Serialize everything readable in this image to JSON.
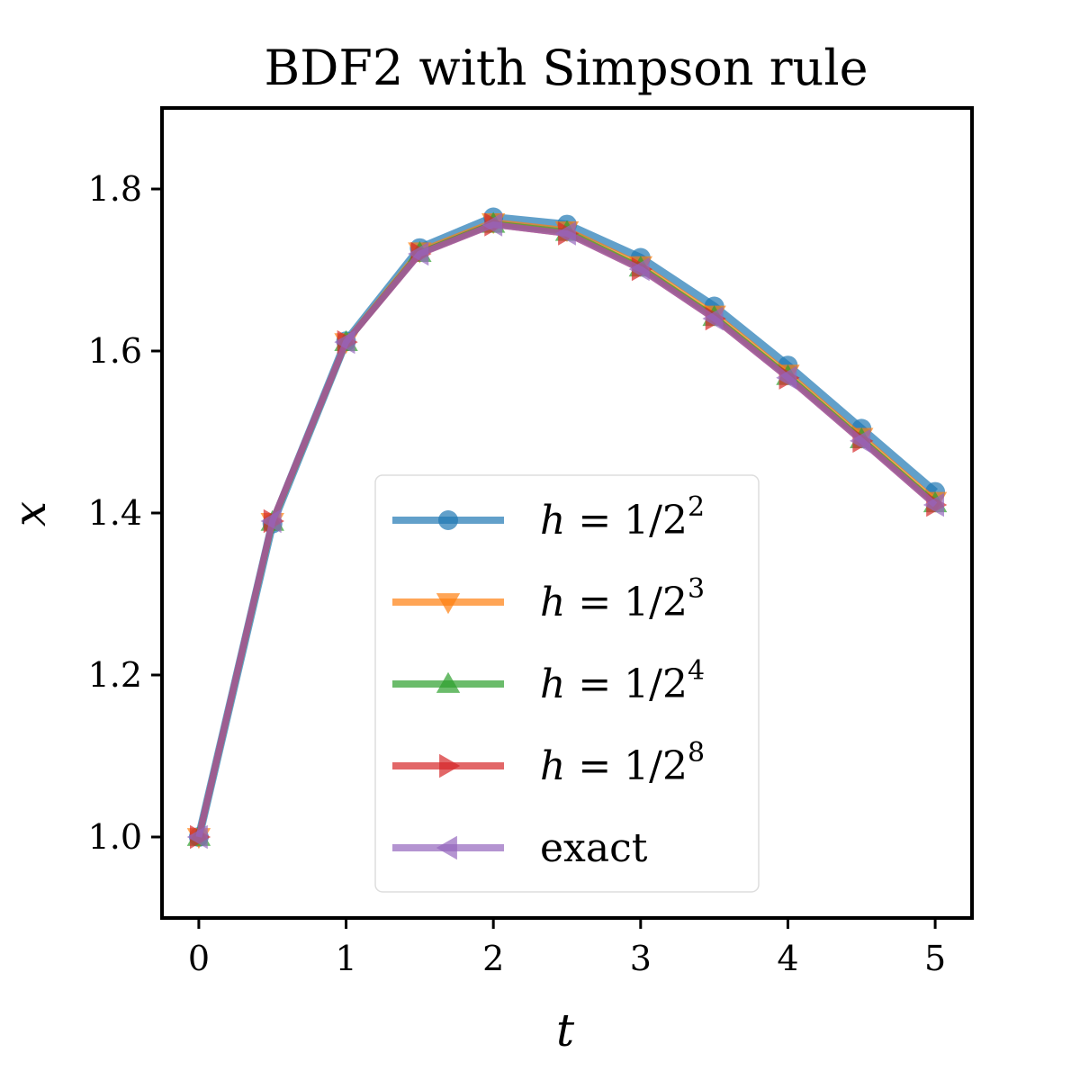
{
  "chart_data": {
    "type": "line",
    "title": "BDF2 with Simpson rule",
    "xlabel": "t",
    "ylabel": "x",
    "xlim": [
      -0.25,
      5.25
    ],
    "ylim": [
      0.9,
      1.9
    ],
    "xticks": [
      0,
      1,
      2,
      3,
      4,
      5
    ],
    "xtick_labels": [
      "0",
      "1",
      "2",
      "3",
      "4",
      "5"
    ],
    "yticks": [
      1.0,
      1.2,
      1.4,
      1.6,
      1.8
    ],
    "ytick_labels": [
      "1.0",
      "1.2",
      "1.4",
      "1.6",
      "1.8"
    ],
    "grid": false,
    "legend_position": "lower-center",
    "x": [
      0,
      0.5,
      1,
      1.5,
      2,
      2.5,
      3,
      3.5,
      4,
      4.5,
      5
    ],
    "series": [
      {
        "name": "h = 1/2^2",
        "legend": {
          "prefix": "h",
          "rest": " = 1/2",
          "exp": "2"
        },
        "color": "#1f77b4",
        "marker": "circle",
        "values": [
          1.0,
          1.387,
          1.612,
          1.727,
          1.765,
          1.756,
          1.715,
          1.655,
          1.582,
          1.504,
          1.426
        ]
      },
      {
        "name": "h = 1/2^3",
        "legend": {
          "prefix": "h",
          "rest": " = 1/2",
          "exp": "3"
        },
        "color": "#ff7f0e",
        "marker": "triangle-down",
        "values": [
          1.0,
          1.389,
          1.611,
          1.723,
          1.759,
          1.749,
          1.706,
          1.645,
          1.572,
          1.494,
          1.415
        ]
      },
      {
        "name": "h = 1/2^4",
        "legend": {
          "prefix": "h",
          "rest": " = 1/2",
          "exp": "4"
        },
        "color": "#2ca02c",
        "marker": "triangle-up",
        "values": [
          1.0,
          1.389,
          1.611,
          1.721,
          1.757,
          1.747,
          1.703,
          1.642,
          1.569,
          1.491,
          1.412
        ]
      },
      {
        "name": "h = 1/2^8",
        "legend": {
          "prefix": "h",
          "rest": " = 1/2",
          "exp": "8"
        },
        "color": "#d62728",
        "marker": "triangle-right",
        "values": [
          1.0,
          1.39,
          1.611,
          1.72,
          1.756,
          1.745,
          1.701,
          1.64,
          1.567,
          1.489,
          1.41
        ]
      },
      {
        "name": "exact",
        "legend": {
          "prefix": "",
          "rest": "exact",
          "exp": ""
        },
        "color": "#9467bd",
        "marker": "triangle-left",
        "values": [
          1.0,
          1.39,
          1.611,
          1.72,
          1.756,
          1.745,
          1.701,
          1.64,
          1.567,
          1.489,
          1.41
        ]
      }
    ]
  }
}
